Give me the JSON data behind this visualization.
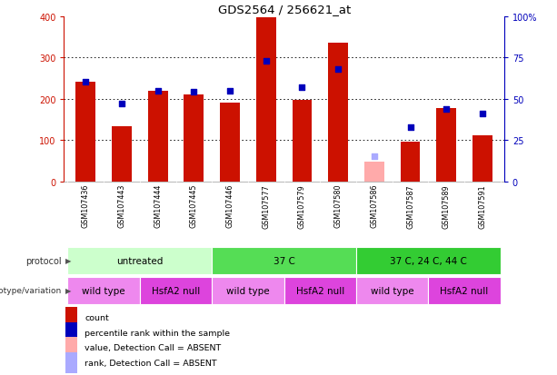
{
  "title": "GDS2564 / 256621_at",
  "samples": [
    "GSM107436",
    "GSM107443",
    "GSM107444",
    "GSM107445",
    "GSM107446",
    "GSM107577",
    "GSM107579",
    "GSM107580",
    "GSM107586",
    "GSM107587",
    "GSM107589",
    "GSM107591"
  ],
  "counts": [
    240,
    133,
    220,
    210,
    190,
    398,
    197,
    335,
    null,
    97,
    178,
    112
  ],
  "absent_counts": [
    null,
    null,
    null,
    null,
    null,
    null,
    null,
    null,
    48,
    null,
    null,
    null
  ],
  "percentile_ranks": [
    60,
    47,
    55,
    54,
    55,
    73,
    57,
    68,
    null,
    33,
    44,
    41
  ],
  "absent_ranks": [
    null,
    null,
    null,
    null,
    null,
    null,
    null,
    null,
    15,
    null,
    null,
    null
  ],
  "ylim_left": [
    0,
    400
  ],
  "ylim_right": [
    0,
    100
  ],
  "yticks_left": [
    0,
    100,
    200,
    300,
    400
  ],
  "yticks_right": [
    0,
    25,
    50,
    75,
    100
  ],
  "ytick_labels_right": [
    "0",
    "25",
    "50",
    "75",
    "100%"
  ],
  "bar_color": "#CC1100",
  "absent_bar_color": "#FFAAAA",
  "dot_color": "#0000BB",
  "absent_dot_color": "#AAAAFF",
  "grid_color": "#000000",
  "protocol_groups": [
    {
      "label": "untreated",
      "start": 0,
      "end": 4,
      "color": "#CCFFCC"
    },
    {
      "label": "37 C",
      "start": 4,
      "end": 8,
      "color": "#55DD55"
    },
    {
      "label": "37 C, 24 C, 44 C",
      "start": 8,
      "end": 12,
      "color": "#33CC33"
    }
  ],
  "genotype_groups": [
    {
      "label": "wild type",
      "start": 0,
      "end": 2,
      "color": "#EE88EE"
    },
    {
      "label": "HsfA2 null",
      "start": 2,
      "end": 4,
      "color": "#DD44DD"
    },
    {
      "label": "wild type",
      "start": 4,
      "end": 6,
      "color": "#EE88EE"
    },
    {
      "label": "HsfA2 null",
      "start": 6,
      "end": 8,
      "color": "#DD44DD"
    },
    {
      "label": "wild type",
      "start": 8,
      "end": 10,
      "color": "#EE88EE"
    },
    {
      "label": "HsfA2 null",
      "start": 10,
      "end": 12,
      "color": "#DD44DD"
    }
  ],
  "protocol_label": "protocol",
  "genotype_label": "genotype/variation",
  "legend_items": [
    {
      "label": "count",
      "color": "#CC1100"
    },
    {
      "label": "percentile rank within the sample",
      "color": "#0000BB"
    },
    {
      "label": "value, Detection Call = ABSENT",
      "color": "#FFAAAA"
    },
    {
      "label": "rank, Detection Call = ABSENT",
      "color": "#AAAAFF"
    }
  ],
  "bg_color": "#FFFFFF",
  "plot_bg_color": "#FFFFFF",
  "tick_color_left": "#CC1100",
  "tick_color_right": "#0000BB",
  "sample_bg_color": "#BBBBBB"
}
